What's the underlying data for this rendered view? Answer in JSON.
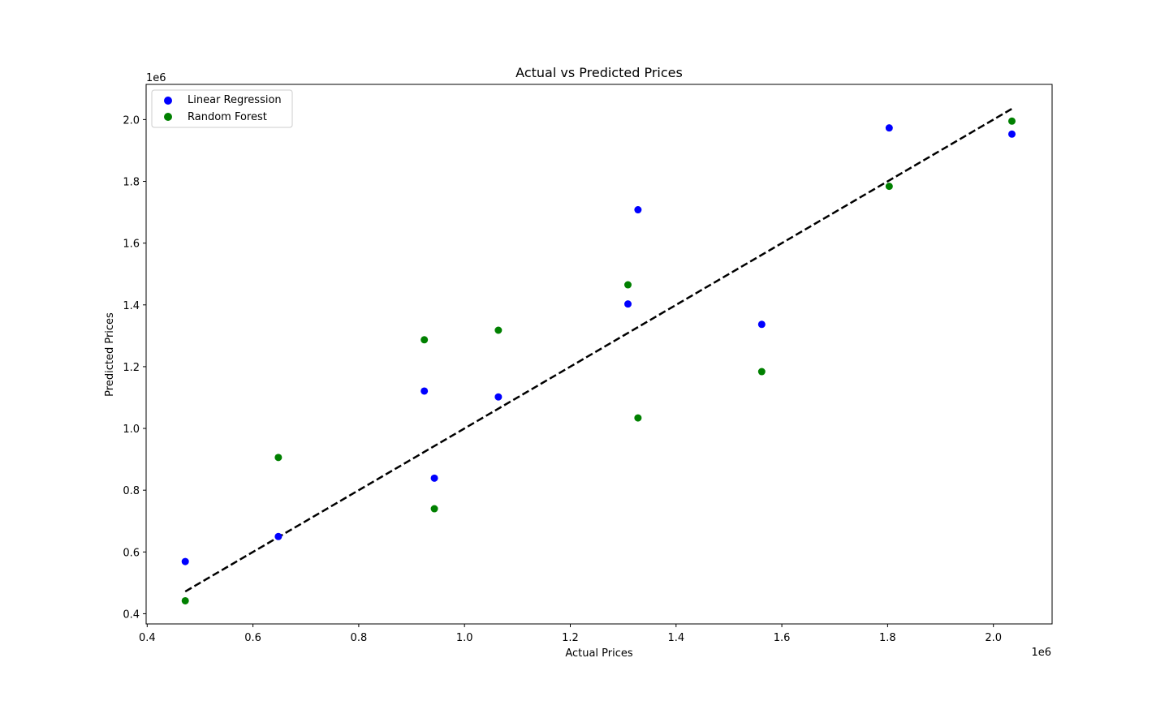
{
  "chart_data": {
    "type": "scatter",
    "title": "Actual vs Predicted Prices",
    "xlabel": "Actual Prices",
    "ylabel": "Predicted Prices",
    "x_offset_label": "1e6",
    "y_offset_label": "1e6",
    "xlim": [
      0.398,
      2.111
    ],
    "ylim": [
      0.367,
      2.114
    ],
    "x_ticks": [
      0.4,
      0.6,
      0.8,
      1.0,
      1.2,
      1.4,
      1.6,
      1.8,
      2.0
    ],
    "x_tick_labels": [
      "0.4",
      "0.6",
      "0.8",
      "1.0",
      "1.2",
      "1.4",
      "1.6",
      "1.8",
      "2.0"
    ],
    "y_ticks": [
      0.4,
      0.6,
      0.8,
      1.0,
      1.2,
      1.4,
      1.6,
      1.8,
      2.0
    ],
    "y_tick_labels": [
      "0.4",
      "0.6",
      "0.8",
      "1.0",
      "1.2",
      "1.4",
      "1.6",
      "1.8",
      "2.0"
    ],
    "grid": false,
    "legend_position": "upper-left",
    "x": [
      0.472,
      0.648,
      0.924,
      0.943,
      1.064,
      1.309,
      1.328,
      1.562,
      1.803,
      2.035
    ],
    "series": [
      {
        "name": "Linear Regression",
        "color": "#0000ff",
        "values": [
          0.569,
          0.65,
          1.121,
          0.839,
          1.102,
          1.403,
          1.708,
          1.337,
          1.973,
          1.953
        ]
      },
      {
        "name": "Random Forest",
        "color": "#008000",
        "values": [
          0.442,
          0.906,
          1.287,
          0.74,
          1.318,
          1.465,
          1.034,
          1.184,
          1.784,
          1.995
        ]
      }
    ],
    "reference_line": {
      "style": "dashed",
      "color": "#000000",
      "x": [
        0.472,
        2.035
      ],
      "y": [
        0.472,
        2.035
      ]
    }
  }
}
